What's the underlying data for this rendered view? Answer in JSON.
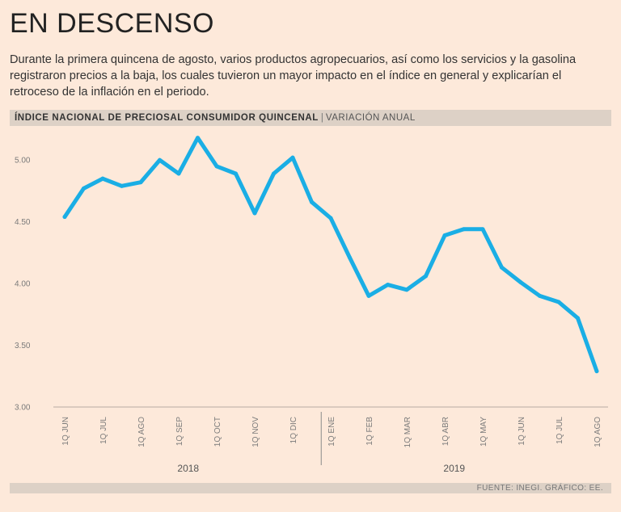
{
  "title": "EN DESCENSO",
  "subtitle": "Durante la primera quincena de agosto, varios productos agropecuarios, así como los servicios y la gasolina registraron precios a la baja, los cuales tuvieron un mayor impacto en el índice en general y explicarían el retroceso de la inflación en el periodo.",
  "band": {
    "heading": "ÍNDICE NACIONAL DE PRECIOSAL CONSUMIDOR QUINCENAL",
    "separator": "|",
    "subheading": "VARIACIÓN ANUAL"
  },
  "source": "FUENTE: INEGI. GRÁFICO: EE.",
  "colors": {
    "background": "#fde9da",
    "line": "#1aaee5",
    "band": "#ddd1c6"
  },
  "chart_data": {
    "type": "line",
    "title": "ÍNDICE NACIONAL DE PRECIOSAL CONSUMIDOR QUINCENAL",
    "ylabel": "VARIACIÓN ANUAL",
    "xlabel": "",
    "ylim": [
      3.0,
      5.25
    ],
    "y_ticks": [
      {
        "value": 3.0,
        "label": "3.00"
      },
      {
        "value": 3.5,
        "label": "3.50"
      },
      {
        "value": 4.0,
        "label": "4.00"
      },
      {
        "value": 4.5,
        "label": "4.50"
      },
      {
        "value": 5.0,
        "label": "5.00"
      }
    ],
    "x_tick_labels": [
      {
        "index": 0,
        "label": "1Q JUN"
      },
      {
        "index": 2,
        "label": "1Q JUL"
      },
      {
        "index": 4,
        "label": "1Q AGO"
      },
      {
        "index": 6,
        "label": "1Q SEP"
      },
      {
        "index": 8,
        "label": "1Q OCT"
      },
      {
        "index": 10,
        "label": "1Q NOV"
      },
      {
        "index": 12,
        "label": "1Q DIC"
      },
      {
        "index": 14,
        "label": "1Q ENE"
      },
      {
        "index": 16,
        "label": "1Q FEB"
      },
      {
        "index": 18,
        "label": "1Q MAR"
      },
      {
        "index": 20,
        "label": "1Q ABR"
      },
      {
        "index": 22,
        "label": "1Q MAY"
      },
      {
        "index": 24,
        "label": "1Q JUN"
      },
      {
        "index": 26,
        "label": "1Q JUL"
      },
      {
        "index": 28,
        "label": "1Q AGO"
      }
    ],
    "year_labels": [
      {
        "label": "2018",
        "from_index": 0,
        "to_index": 13
      },
      {
        "label": "2019",
        "from_index": 13,
        "to_index": 28
      }
    ],
    "year_divider_after_index": 13,
    "series": [
      {
        "name": "Variación anual",
        "values": [
          4.54,
          4.77,
          4.85,
          4.79,
          4.82,
          5.0,
          4.89,
          5.18,
          4.95,
          4.89,
          4.57,
          4.89,
          5.02,
          4.66,
          4.53,
          4.21,
          3.9,
          3.99,
          3.95,
          4.06,
          4.39,
          4.44,
          4.44,
          4.13,
          4.01,
          3.9,
          3.85,
          3.72,
          3.29
        ]
      }
    ],
    "grid": false,
    "legend": "none"
  }
}
